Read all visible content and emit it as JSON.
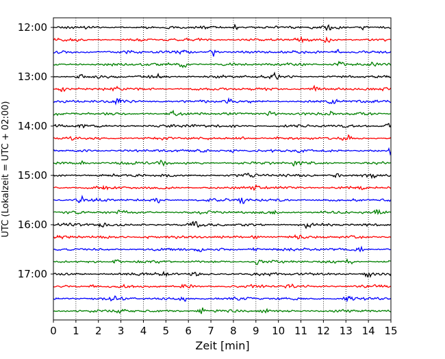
{
  "chart_data": {
    "type": "line",
    "title": "",
    "xlabel": "Zeit  [min]",
    "ylabel": "UTC (Lokalzeit = UTC + 02:00)",
    "xlim": [
      0,
      15
    ],
    "x_ticks": [
      0,
      1,
      2,
      3,
      4,
      5,
      6,
      7,
      8,
      9,
      10,
      11,
      12,
      13,
      14,
      15
    ],
    "x_tick_labels": [
      "0",
      "1",
      "2",
      "3",
      "4",
      "5",
      "6",
      "7",
      "8",
      "9",
      "10",
      "11",
      "12",
      "13",
      "14",
      "15"
    ],
    "y_tick_labels": [
      "12:00",
      "13:00",
      "14:00",
      "15:00",
      "16:00",
      "17:00"
    ],
    "trace_interval_minutes": 15,
    "first_trace": "12:00",
    "trace_count": 24,
    "grid": "vertical dotted at each minute",
    "color_cycle": [
      "#000000",
      "#ff0000",
      "#0000ff",
      "#008000"
    ],
    "traces": [
      {
        "start": "12:00",
        "events": [
          {
            "t": 8.1,
            "amp": 1.4
          },
          {
            "t": 12.2,
            "amp": 1.2
          },
          {
            "t": 13.8,
            "amp": 1.3
          }
        ]
      },
      {
        "start": "12:15",
        "events": [
          {
            "t": 0.9,
            "amp": 1.2
          },
          {
            "t": 10.9,
            "amp": 1.9
          },
          {
            "t": 12.2,
            "amp": 1.3
          }
        ]
      },
      {
        "start": "12:30",
        "events": [
          {
            "t": 5.8,
            "amp": 1.2
          },
          {
            "t": 7.1,
            "amp": 2.2
          },
          {
            "t": 12.6,
            "amp": 1.3
          }
        ]
      },
      {
        "start": "12:45",
        "events": [
          {
            "t": 5.8,
            "amp": 1.3
          },
          {
            "t": 12.7,
            "amp": 1.4
          },
          {
            "t": 14.3,
            "amp": 1.2
          }
        ]
      },
      {
        "start": "13:00",
        "events": [
          {
            "t": 1.2,
            "amp": 1.2
          },
          {
            "t": 4.6,
            "amp": 1.3
          },
          {
            "t": 9.8,
            "amp": 1.2
          }
        ]
      },
      {
        "start": "13:15",
        "events": [
          {
            "t": 0.4,
            "amp": 1.2
          },
          {
            "t": 2.7,
            "amp": 1.2
          },
          {
            "t": 11.6,
            "amp": 1.3
          }
        ]
      },
      {
        "start": "13:30",
        "events": [
          {
            "t": 2.9,
            "amp": 1.5
          },
          {
            "t": 7.8,
            "amp": 1.2
          },
          {
            "t": 12.4,
            "amp": 1.3
          }
        ]
      },
      {
        "start": "13:45",
        "events": [
          {
            "t": 9.7,
            "amp": 1.6
          },
          {
            "t": 12.3,
            "amp": 1.3
          },
          {
            "t": 5.3,
            "amp": 1.1
          }
        ]
      },
      {
        "start": "14:00",
        "events": [
          {
            "t": 1.2,
            "amp": 1.4
          },
          {
            "t": 6.1,
            "amp": 1.2
          },
          {
            "t": 14.9,
            "amp": 1.3
          }
        ]
      },
      {
        "start": "14:15",
        "events": [
          {
            "t": 0.7,
            "amp": 1.2
          },
          {
            "t": 8.3,
            "amp": 1.1
          },
          {
            "t": 13.1,
            "amp": 1.2
          }
        ]
      },
      {
        "start": "14:30",
        "events": [
          {
            "t": 7.9,
            "amp": 1.3
          },
          {
            "t": 10.9,
            "amp": 1.3
          },
          {
            "t": 15.0,
            "amp": 1.6
          }
        ]
      },
      {
        "start": "14:45",
        "events": [
          {
            "t": 4.8,
            "amp": 1.3
          },
          {
            "t": 10.8,
            "amp": 1.4
          },
          {
            "t": 1.3,
            "amp": 1.1
          }
        ]
      },
      {
        "start": "15:00",
        "events": [
          {
            "t": 8.7,
            "amp": 1.3
          },
          {
            "t": 12.6,
            "amp": 1.2
          },
          {
            "t": 14.2,
            "amp": 1.2
          }
        ]
      },
      {
        "start": "15:15",
        "events": [
          {
            "t": 2.3,
            "amp": 1.2
          },
          {
            "t": 8.9,
            "amp": 2.0
          },
          {
            "t": 13.7,
            "amp": 1.2
          }
        ]
      },
      {
        "start": "15:30",
        "events": [
          {
            "t": 1.2,
            "amp": 1.4
          },
          {
            "t": 8.4,
            "amp": 1.3
          },
          {
            "t": 4.7,
            "amp": 1.1
          }
        ]
      },
      {
        "start": "15:45",
        "events": [
          {
            "t": 9.8,
            "amp": 1.2
          },
          {
            "t": 14.4,
            "amp": 1.4
          },
          {
            "t": 3.0,
            "amp": 1.1
          }
        ]
      },
      {
        "start": "16:00",
        "events": [
          {
            "t": 6.3,
            "amp": 1.2
          },
          {
            "t": 11.3,
            "amp": 1.2
          },
          {
            "t": 2.1,
            "amp": 1.1
          }
        ]
      },
      {
        "start": "16:15",
        "events": [
          {
            "t": 9.0,
            "amp": 1.3
          },
          {
            "t": 10.9,
            "amp": 1.2
          },
          {
            "t": 4.3,
            "amp": 1.1
          }
        ]
      },
      {
        "start": "16:30",
        "events": [
          {
            "t": 6.4,
            "amp": 1.2
          },
          {
            "t": 8.9,
            "amp": 1.1
          },
          {
            "t": 13.6,
            "amp": 1.2
          }
        ]
      },
      {
        "start": "16:45",
        "events": [
          {
            "t": 2.8,
            "amp": 1.5
          },
          {
            "t": 9.1,
            "amp": 1.3
          },
          {
            "t": 13.2,
            "amp": 1.3
          }
        ]
      },
      {
        "start": "17:00",
        "events": [
          {
            "t": 5.0,
            "amp": 1.2
          },
          {
            "t": 6.3,
            "amp": 1.2
          },
          {
            "t": 14.0,
            "amp": 1.3
          }
        ]
      },
      {
        "start": "17:15",
        "events": [
          {
            "t": 5.9,
            "amp": 1.1
          },
          {
            "t": 10.5,
            "amp": 1.1
          },
          {
            "t": 1.8,
            "amp": 1.0
          }
        ]
      },
      {
        "start": "17:30",
        "events": [
          {
            "t": 5.8,
            "amp": 1.4
          },
          {
            "t": 13.1,
            "amp": 1.5
          },
          {
            "t": 2.6,
            "amp": 1.1
          }
        ]
      },
      {
        "start": "17:45",
        "events": [
          {
            "t": 6.6,
            "amp": 1.4
          },
          {
            "t": 3.0,
            "amp": 1.2
          },
          {
            "t": 9.4,
            "amp": 1.1
          }
        ]
      }
    ]
  }
}
